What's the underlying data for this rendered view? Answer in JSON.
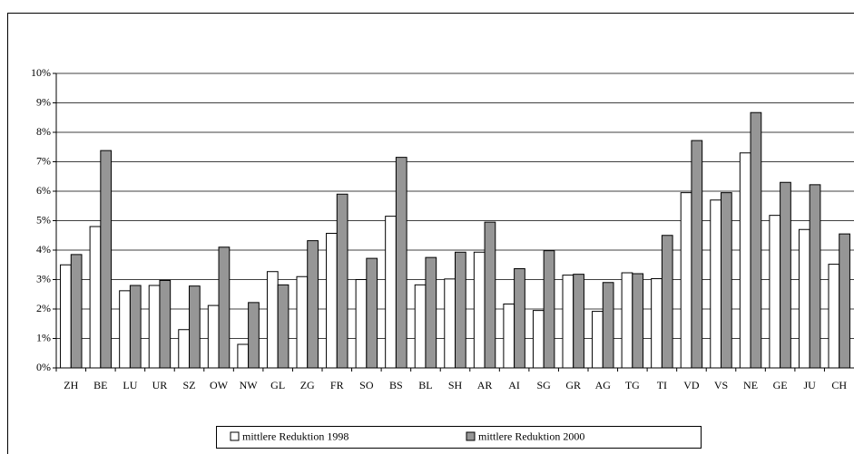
{
  "chart_data": {
    "type": "bar",
    "categories": [
      "ZH",
      "BE",
      "LU",
      "UR",
      "SZ",
      "OW",
      "NW",
      "GL",
      "ZG",
      "FR",
      "SO",
      "BS",
      "BL",
      "SH",
      "AR",
      "AI",
      "SG",
      "GR",
      "AG",
      "TG",
      "TI",
      "VD",
      "VS",
      "NE",
      "GE",
      "JU",
      "CH"
    ],
    "series": [
      {
        "name": "mittlere Reduktion 1998",
        "color": "#ffffff",
        "values": [
          3.5,
          4.8,
          2.62,
          2.8,
          1.3,
          2.12,
          0.8,
          3.27,
          3.1,
          4.57,
          3.0,
          5.15,
          2.82,
          3.02,
          3.93,
          2.17,
          1.95,
          3.15,
          1.92,
          3.23,
          3.03,
          5.95,
          5.7,
          7.3,
          5.18,
          4.7,
          3.52
        ]
      },
      {
        "name": "mittlere Reduktion 2000",
        "color": "#969696",
        "values": [
          3.85,
          7.38,
          2.8,
          2.97,
          2.78,
          4.1,
          2.22,
          2.82,
          4.32,
          5.9,
          3.72,
          7.15,
          3.75,
          3.93,
          4.95,
          3.37,
          3.98,
          3.18,
          2.9,
          3.2,
          4.5,
          7.72,
          5.95,
          8.67,
          6.3,
          6.22,
          4.55
        ]
      }
    ],
    "ylim": [
      0,
      10
    ],
    "yticks": [
      {
        "value": 0,
        "label": "0%"
      },
      {
        "value": 1,
        "label": "1%"
      },
      {
        "value": 2,
        "label": "2%"
      },
      {
        "value": 3,
        "label": "3%"
      },
      {
        "value": 4,
        "label": "4%"
      },
      {
        "value": 5,
        "label": "5%"
      },
      {
        "value": 6,
        "label": "6%"
      },
      {
        "value": 7,
        "label": "7%"
      },
      {
        "value": 8,
        "label": "8%"
      },
      {
        "value": 9,
        "label": "9%"
      },
      {
        "value": 10,
        "label": "10%"
      }
    ],
    "grid": true,
    "legend": "bottom"
  }
}
